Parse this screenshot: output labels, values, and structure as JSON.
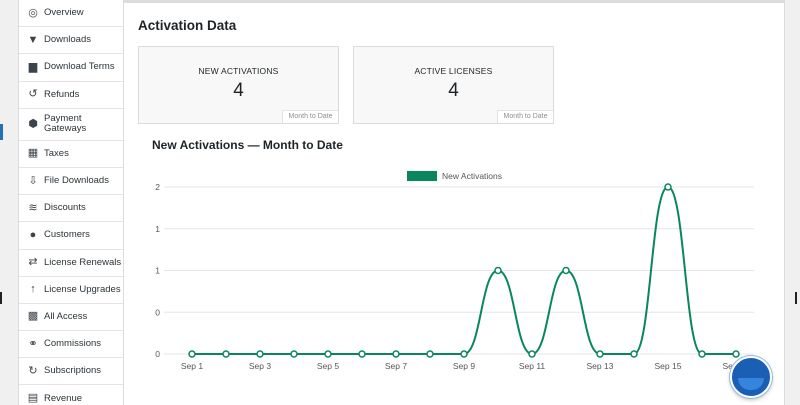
{
  "sidebar": {
    "items": [
      {
        "label": "Overview",
        "icon": "dashboard-icon",
        "glyph": "◎"
      },
      {
        "label": "Downloads",
        "icon": "download-icon",
        "glyph": "▼"
      },
      {
        "label": "Download Terms",
        "icon": "folder-icon",
        "glyph": "▆"
      },
      {
        "label": "Refunds",
        "icon": "undo-icon",
        "glyph": "↺"
      },
      {
        "label": "Payment Gateways",
        "icon": "gateways-icon",
        "glyph": "⬢"
      },
      {
        "label": "Taxes",
        "icon": "receipt-icon",
        "glyph": "▦"
      },
      {
        "label": "File Downloads",
        "icon": "file-download-icon",
        "glyph": "⇩"
      },
      {
        "label": "Discounts",
        "icon": "tag-icon",
        "glyph": "≋"
      },
      {
        "label": "Customers",
        "icon": "users-icon",
        "glyph": "●"
      },
      {
        "label": "License Renewals",
        "icon": "renew-icon",
        "glyph": "⇄"
      },
      {
        "label": "License Upgrades",
        "icon": "arrow-up-icon",
        "glyph": "↑"
      },
      {
        "label": "All Access",
        "icon": "grid-icon",
        "glyph": "▩"
      },
      {
        "label": "Commissions",
        "icon": "people-group-icon",
        "glyph": "⚭"
      },
      {
        "label": "Subscriptions",
        "icon": "refresh-icon",
        "glyph": "↻"
      },
      {
        "label": "Revenue",
        "icon": "chart-icon",
        "glyph": "▤"
      }
    ]
  },
  "main": {
    "section_title": "Activation Data",
    "cards": [
      {
        "label": "NEW ACTIVATIONS",
        "value": "4",
        "footnote": "Month to Date"
      },
      {
        "label": "ACTIVE LICENSES",
        "value": "4",
        "footnote": "Month to Date"
      }
    ],
    "chart_title": "New Activations — Month to Date"
  },
  "chart_data": {
    "type": "line",
    "title": "New Activations — Month to Date",
    "series": [
      {
        "name": "New Activations",
        "color": "#0a875a",
        "values": [
          0,
          0,
          0,
          0,
          0,
          0,
          0,
          0,
          0,
          1,
          0,
          1,
          0,
          0,
          2,
          0,
          0
        ]
      }
    ],
    "x": [
      "Sep 1",
      "Sep 2",
      "Sep 3",
      "Sep 4",
      "Sep 5",
      "Sep 6",
      "Sep 7",
      "Sep 8",
      "Sep 9",
      "Sep 10",
      "Sep 11",
      "Sep 12",
      "Sep 13",
      "Sep 14",
      "Sep 15",
      "Sep 16",
      "Sep 17"
    ],
    "x_tick_labels": [
      "Sep 1",
      "Sep 3",
      "Sep 5",
      "Sep 7",
      "Sep 9",
      "Sep 11",
      "Sep 13",
      "Sep 15",
      "Sep 17"
    ],
    "y_tick_labels": [
      "0",
      "0",
      "1",
      "1",
      "2"
    ],
    "ylim": [
      0,
      2
    ],
    "grid": true,
    "legend": "top-center"
  }
}
